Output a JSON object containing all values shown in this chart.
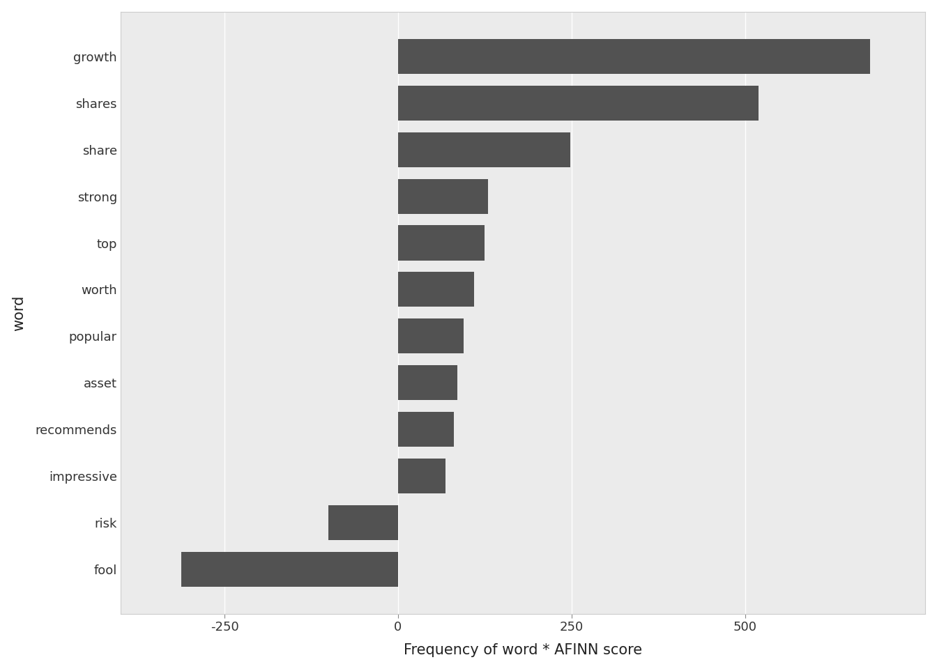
{
  "words": [
    "fool",
    "risk",
    "impressive",
    "recommends",
    "asset",
    "popular",
    "worth",
    "top",
    "strong",
    "share",
    "shares",
    "growth"
  ],
  "values": [
    -312,
    -100,
    68,
    80,
    85,
    95,
    110,
    125,
    130,
    248,
    520,
    680
  ],
  "bar_color": "#525252",
  "xlabel": "Frequency of word * AFINN score",
  "ylabel": "word",
  "xlim": [
    -400,
    760
  ],
  "background_color": "#ebebeb",
  "panel_background": "#ebebeb",
  "grid_color": "#ffffff",
  "tick_labels": [
    "-250",
    "0",
    "250",
    "500"
  ],
  "tick_values": [
    -250,
    0,
    250,
    500
  ],
  "xlabel_fontsize": 15,
  "ylabel_fontsize": 15,
  "tick_fontsize": 13,
  "label_color": "#444444"
}
